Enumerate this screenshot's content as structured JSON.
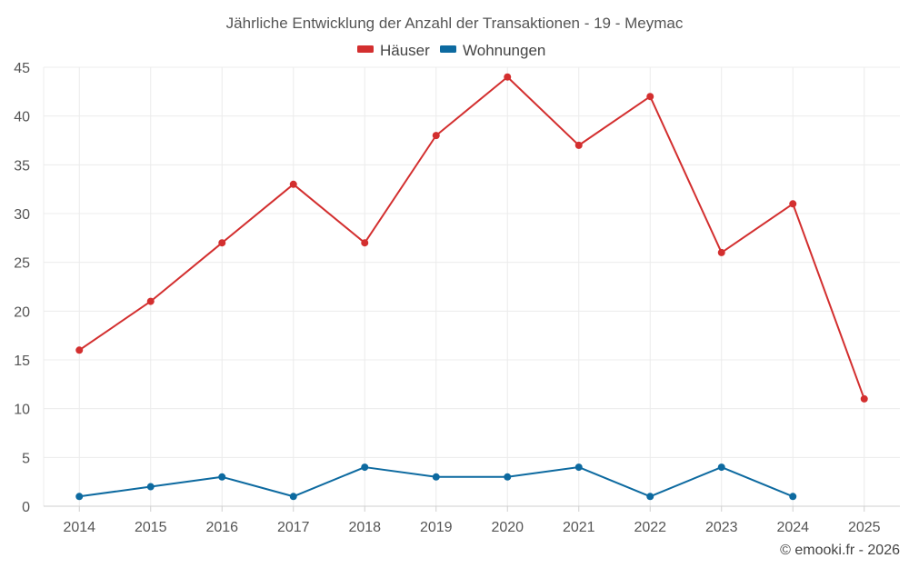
{
  "chart_data": {
    "type": "line",
    "title": "Jährliche Entwicklung der Anzahl der Transaktionen - 19 - Meymac",
    "categories": [
      "2014",
      "2015",
      "2016",
      "2017",
      "2018",
      "2019",
      "2020",
      "2021",
      "2022",
      "2023",
      "2024",
      "2025"
    ],
    "series": [
      {
        "name": "Häuser",
        "color": "#d32f2f",
        "values": [
          16,
          21,
          27,
          33,
          27,
          38,
          44,
          37,
          42,
          26,
          31,
          11
        ]
      },
      {
        "name": "Wohnungen",
        "color": "#0d6aa0",
        "values": [
          1,
          2,
          3,
          1,
          4,
          3,
          3,
          4,
          1,
          4,
          1,
          null
        ]
      }
    ],
    "ylim": [
      0,
      45
    ],
    "yticks": [
      "0",
      "5",
      "10",
      "15",
      "20",
      "25",
      "30",
      "35",
      "40",
      "45"
    ],
    "grid": true,
    "legend_position": "top-center"
  },
  "credit": "© emooki.fr - 2026"
}
